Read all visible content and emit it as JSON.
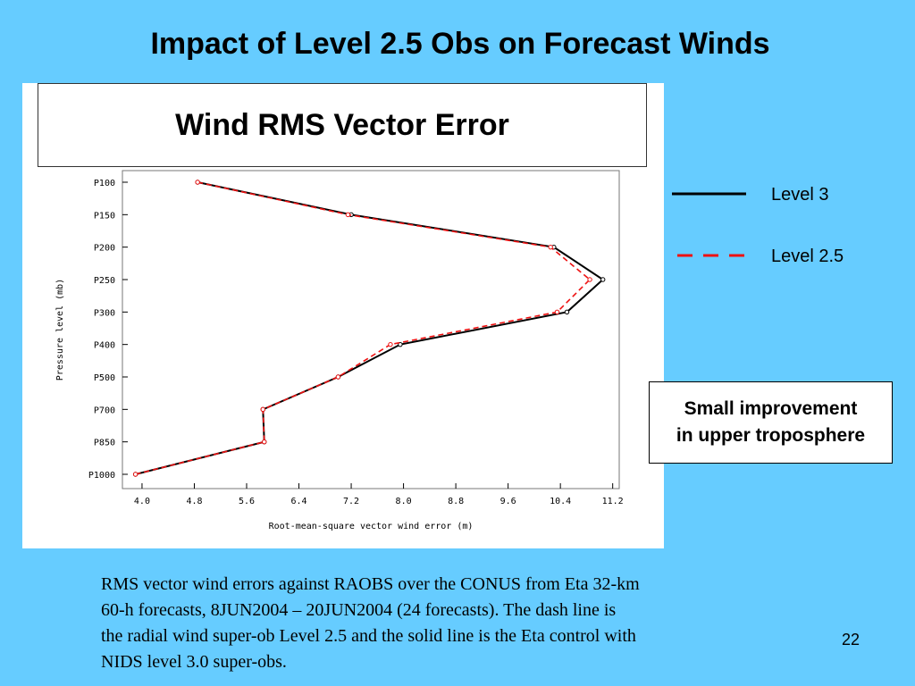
{
  "slide": {
    "title": "Impact of Level 2.5 Obs on Forecast Winds",
    "page_number": "22",
    "caption": [
      "RMS vector wind errors against RAOBS over the CONUS from Eta 32-km",
      "60-h forecasts, 8JUN2004 – 20JUN2004 (24 forecasts).  The dash line is",
      "the radial wind super-ob Level 2.5 and the solid line is the Eta control with",
      "NIDS level 3.0 super-obs."
    ],
    "note": [
      "Small improvement",
      "in upper troposphere"
    ]
  },
  "chart_data": {
    "type": "line",
    "title": "Wind RMS Vector Error",
    "xlabel": "Root-mean-square vector wind error (m)",
    "ylabel": "Pressure level (mb)",
    "xlim": [
      3.7,
      11.3
    ],
    "x_ticks": [
      "4.0",
      "4.8",
      "5.6",
      "6.4",
      "7.2",
      "8.0",
      "8.8",
      "9.6",
      "10.4",
      "11.2"
    ],
    "x_tick_values": [
      4.0,
      4.8,
      5.6,
      6.4,
      7.2,
      8.0,
      8.8,
      9.6,
      10.4,
      11.2
    ],
    "levels": [
      "P100",
      "P150",
      "P200",
      "P250",
      "P300",
      "P400",
      "P500",
      "P700",
      "P850",
      "P1000"
    ],
    "legend_position": "right",
    "series": [
      {
        "name": "Level 3",
        "color": "#000000",
        "dash": "solid",
        "values": [
          4.85,
          7.2,
          10.3,
          11.05,
          10.5,
          7.95,
          7.0,
          5.85,
          5.87,
          3.9
        ]
      },
      {
        "name": "Level 2.5",
        "color": "#ee1111",
        "dash": "dashed",
        "values": [
          4.85,
          7.15,
          10.25,
          10.85,
          10.35,
          7.8,
          7.0,
          5.85,
          5.87,
          3.9
        ]
      }
    ]
  }
}
